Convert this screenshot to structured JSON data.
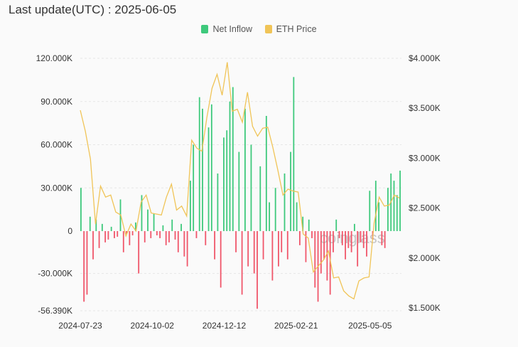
{
  "header": {
    "last_update_label": "Last update(UTC) : 2025-06-05"
  },
  "watermark": "coinglass",
  "colors": {
    "inflow_pos": "#3ec97c",
    "inflow_neg": "#f0566a",
    "eth_price": "#f0c457"
  },
  "chart_data": {
    "type": "bar+line",
    "legend": [
      {
        "name": "Net Inflow",
        "color": "#3ec97c"
      },
      {
        "name": "ETH Price",
        "color": "#f0c457"
      }
    ],
    "legend_position": "top-center",
    "x_start": "2024-07-23",
    "x_ticks": [
      "2024-07-23",
      "2024-10-02",
      "2024-12-12",
      "2025-02-21",
      "2025-05-05"
    ],
    "x_tick_days": [
      0,
      71,
      142,
      213,
      286
    ],
    "total_days": 317,
    "y_left": {
      "ticks": [
        120,
        90,
        60,
        30,
        0,
        -30,
        -56.39
      ],
      "labels": [
        "120.000K",
        "90.000K",
        "60.000K",
        "30.000K",
        "0",
        "-30.000K",
        "-56.390K"
      ],
      "range": [
        -56.39,
        120
      ]
    },
    "y_right": {
      "ticks": [
        4000,
        3500,
        3000,
        2500,
        2000,
        1500
      ],
      "labels": [
        "$4.000K",
        "$3.500K",
        "$3.000K",
        "$2.500K",
        "$2.000K",
        "$1.500K"
      ],
      "range": [
        1470,
        4000
      ]
    },
    "series": [
      {
        "name": "Net Inflow",
        "unit": "K",
        "step_days": 3,
        "values": [
          30,
          -50,
          -45,
          10,
          -20,
          8,
          -12,
          5,
          -8,
          -6,
          3,
          -5,
          -4,
          22,
          -15,
          -2,
          -10,
          -3,
          6,
          -30,
          25,
          -8,
          15,
          -5,
          12,
          -3,
          -5,
          4,
          -10,
          -8,
          8,
          -6,
          -15,
          5,
          -18,
          -25,
          35,
          60,
          -5,
          93,
          85,
          -10,
          72,
          88,
          -20,
          40,
          -40,
          65,
          70,
          90,
          100,
          -15,
          55,
          -45,
          85,
          -25,
          60,
          -30,
          -55,
          45,
          -20,
          80,
          20,
          -35,
          30,
          -25,
          -15,
          40,
          -20,
          55,
          107,
          20,
          -10,
          10,
          -22,
          8,
          -5,
          -40,
          -50,
          -30,
          -20,
          -35,
          -45,
          -15,
          8,
          -5,
          -10,
          -20,
          -12,
          -15,
          5,
          -25,
          -8,
          -12,
          -18,
          28,
          -6,
          35,
          20,
          -10,
          -12,
          30,
          40,
          35,
          25,
          42
        ]
      },
      {
        "name": "ETH Price",
        "unit": "USD",
        "step_days": 5,
        "values": [
          3480,
          3270,
          2990,
          2340,
          2720,
          2610,
          2630,
          2460,
          2430,
          2220,
          2340,
          2270,
          2560,
          2630,
          2450,
          2440,
          2430,
          2610,
          2740,
          2480,
          2520,
          2420,
          3180,
          3100,
          3070,
          3410,
          3700,
          3840,
          3630,
          3960,
          3470,
          3490,
          3360,
          3660,
          3320,
          3220,
          3300,
          3310,
          3110,
          2880,
          2630,
          2690,
          2670,
          2660,
          2240,
          2200,
          1860,
          1920,
          1980,
          2070,
          1800,
          1810,
          1670,
          1620,
          1590,
          1770,
          1800,
          1810,
          2350,
          2610,
          2520,
          2530,
          2630,
          2600
        ]
      }
    ]
  }
}
